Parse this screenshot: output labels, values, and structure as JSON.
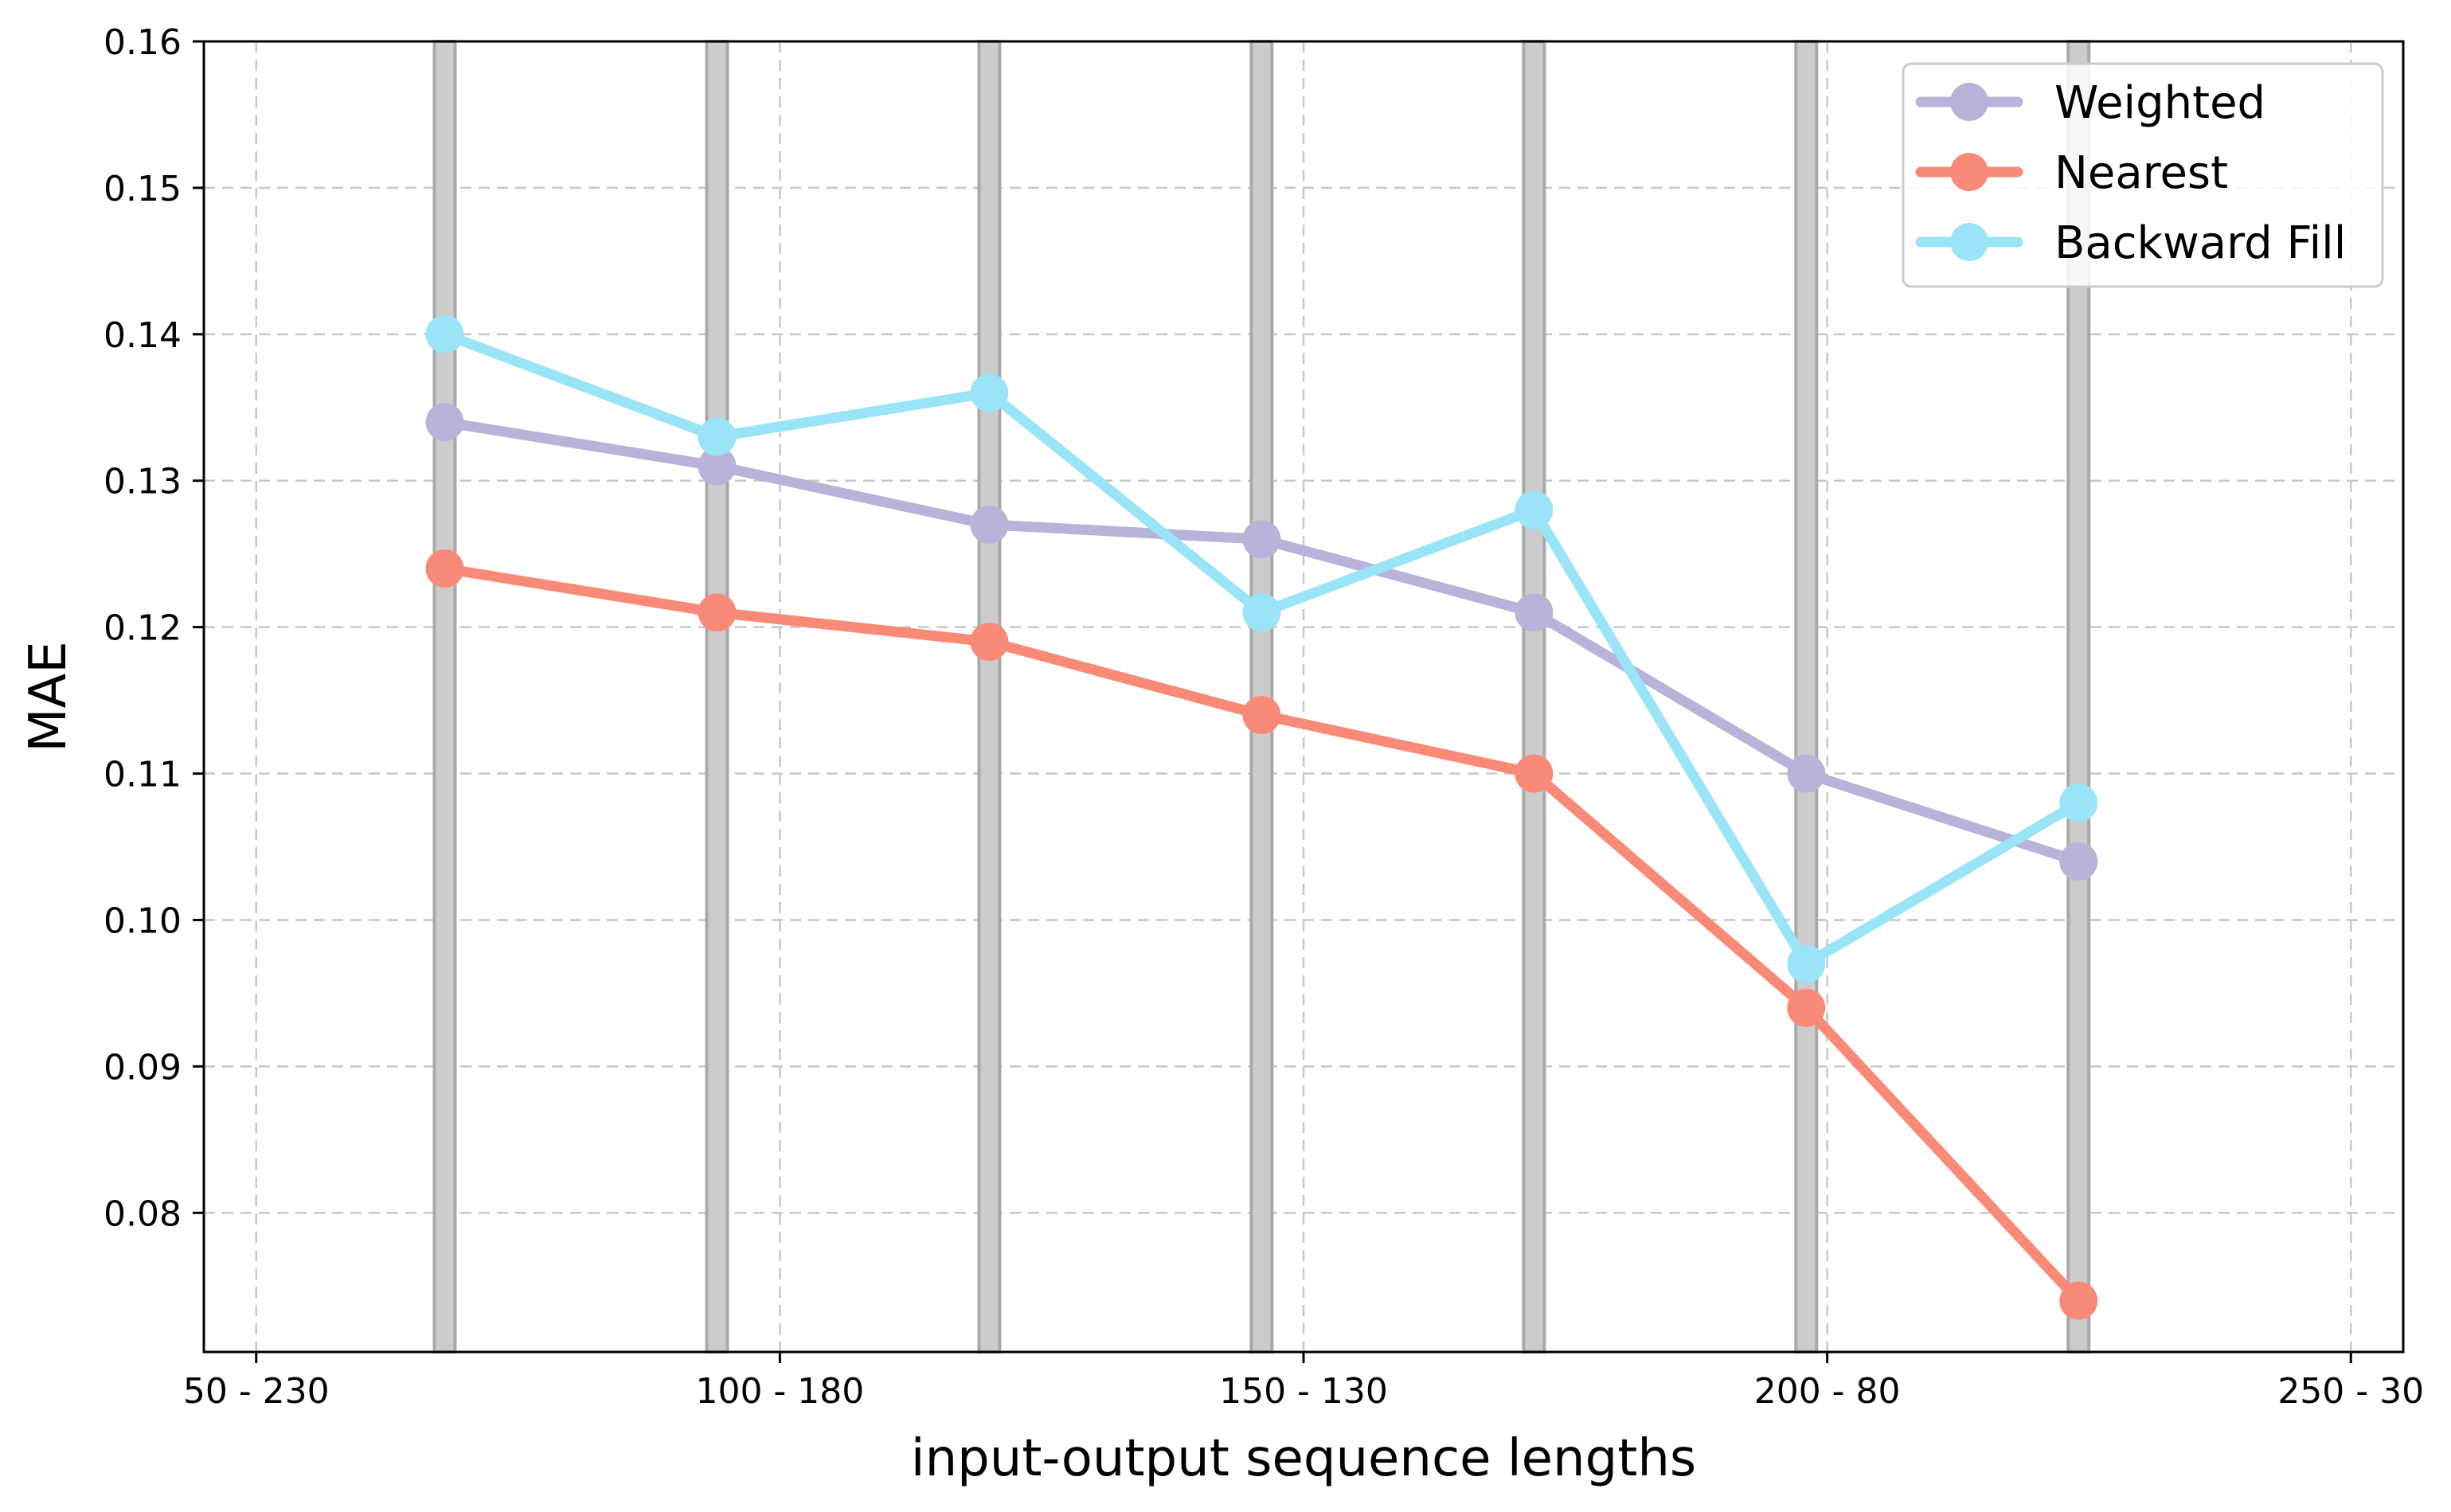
{
  "chart_data": {
    "type": "line",
    "title": "",
    "xlabel": "input-output sequence lengths",
    "ylabel": "MAE",
    "x_tick_labels": [
      "50 - 230",
      "100 - 180",
      "150 - 130",
      "200 - 80",
      "250 - 30"
    ],
    "x_tick_values": [
      50,
      100,
      150,
      200,
      250
    ],
    "xlim": [
      45,
      255
    ],
    "y_ticks": [
      0.08,
      0.09,
      0.1,
      0.11,
      0.12,
      0.13,
      0.14,
      0.15,
      0.16
    ],
    "y_tick_labels": [
      "0.08",
      "0.09",
      "0.10",
      "0.11",
      "0.12",
      "0.13",
      "0.14",
      "0.15",
      "0.16"
    ],
    "ylim": [
      0.0705,
      0.16
    ],
    "grid": true,
    "x": [
      68,
      94,
      120,
      146,
      172,
      198,
      224
    ],
    "series": [
      {
        "name": "Weighted",
        "color": "#b8b3d8",
        "values": [
          0.134,
          0.131,
          0.127,
          0.126,
          0.121,
          0.11,
          0.104
        ]
      },
      {
        "name": "Nearest",
        "color": "#fa8a78",
        "values": [
          0.124,
          0.121,
          0.119,
          0.114,
          0.11,
          0.094,
          0.074
        ]
      },
      {
        "name": "Backward Fill",
        "color": "#99e4f7",
        "values": [
          0.14,
          0.133,
          0.136,
          0.121,
          0.128,
          0.097,
          0.108
        ]
      }
    ],
    "highlight_bands_x": [
      68,
      94,
      120,
      146,
      172,
      198,
      224
    ],
    "legend_position": "top-right"
  }
}
